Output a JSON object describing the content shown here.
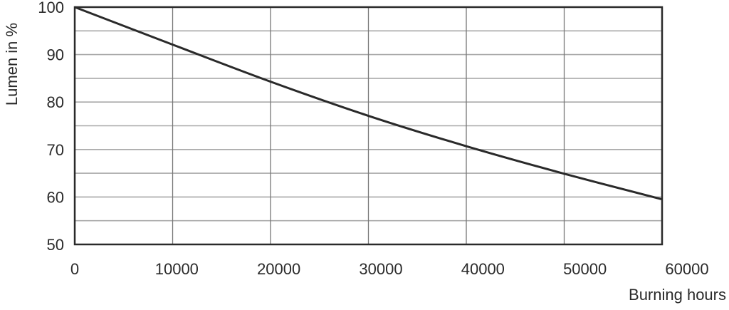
{
  "chart_data": {
    "type": "line",
    "title": "",
    "xlabel": "Burning hours",
    "ylabel": "Lumen in %",
    "xlim": [
      0,
      60000
    ],
    "ylim": [
      50,
      100
    ],
    "x_ticks": [
      0,
      10000,
      20000,
      30000,
      40000,
      50000,
      60000
    ],
    "x_tick_labels": [
      "0",
      "10000",
      "20000",
      "30000",
      "40000",
      "50000",
      "60000"
    ],
    "y_ticks": [
      50,
      60,
      70,
      80,
      90,
      100
    ],
    "y_tick_labels": [
      "50",
      "60",
      "70",
      "80",
      "90",
      "100"
    ],
    "y_minor_grid_step": 5,
    "grid": true,
    "series": [
      {
        "x": [
          0,
          10000,
          20000,
          30000,
          40000,
          50000,
          60000
        ],
        "y": [
          100,
          92.1,
          84.3,
          77.1,
          70.7,
          64.9,
          59.5
        ],
        "color": "#2a2a2a"
      }
    ]
  }
}
